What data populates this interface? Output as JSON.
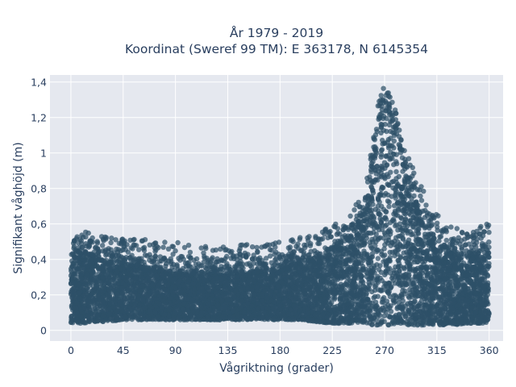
{
  "chart_data": {
    "type": "scatter",
    "title_line1": "År 1979 - 2019",
    "title_line2": "Koordinat (Sweref 99 TM): E 363178, N 6145354",
    "xlabel": "Vågriktning (grader)",
    "ylabel": "Signifikant våghöjd (m)",
    "xlim": [
      -18,
      372
    ],
    "ylim": [
      -0.06,
      1.44
    ],
    "x_ticks": [
      0,
      45,
      90,
      135,
      180,
      225,
      270,
      315,
      360
    ],
    "x_tick_labels": [
      "0",
      "45",
      "90",
      "135",
      "180",
      "225",
      "270",
      "315",
      "360"
    ],
    "y_ticks": [
      0,
      0.2,
      0.4,
      0.6,
      0.8,
      1.0,
      1.2,
      1.4
    ],
    "y_tick_labels": [
      "0",
      "0,2",
      "0,4",
      "0,6",
      "0,8",
      "1",
      "1,2",
      "1,4"
    ],
    "grid": true,
    "colors": {
      "marker": "#2e5168",
      "plot_bg": "#e5e8ef",
      "grid": "#ffffff"
    },
    "envelope": {
      "x": [
        0,
        10,
        20,
        30,
        45,
        60,
        75,
        90,
        105,
        120,
        135,
        150,
        165,
        180,
        195,
        210,
        225,
        240,
        250,
        255,
        260,
        265,
        270,
        275,
        280,
        285,
        290,
        295,
        300,
        305,
        310,
        315,
        320,
        330,
        340,
        350,
        355,
        360
      ],
      "y_min": [
        0.04,
        0.04,
        0.05,
        0.05,
        0.06,
        0.06,
        0.06,
        0.06,
        0.06,
        0.06,
        0.06,
        0.06,
        0.06,
        0.06,
        0.06,
        0.05,
        0.04,
        0.04,
        0.04,
        0.04,
        0.03,
        0.03,
        0.03,
        0.03,
        0.03,
        0.03,
        0.03,
        0.03,
        0.03,
        0.03,
        0.03,
        0.03,
        0.03,
        0.03,
        0.04,
        0.04,
        0.04,
        0.05
      ],
      "y_max": [
        0.56,
        0.56,
        0.55,
        0.53,
        0.52,
        0.52,
        0.5,
        0.5,
        0.48,
        0.47,
        0.47,
        0.49,
        0.48,
        0.5,
        0.52,
        0.56,
        0.6,
        0.66,
        0.78,
        0.92,
        1.1,
        1.3,
        1.38,
        1.34,
        1.24,
        1.1,
        1.0,
        0.92,
        0.86,
        0.78,
        0.7,
        0.66,
        0.62,
        0.58,
        0.56,
        0.58,
        0.6,
        0.6
      ],
      "dense_max": [
        0.44,
        0.44,
        0.42,
        0.4,
        0.38,
        0.36,
        0.34,
        0.32,
        0.32,
        0.32,
        0.32,
        0.32,
        0.33,
        0.35,
        0.38,
        0.42,
        0.46,
        0.52,
        0.62,
        0.78,
        0.98,
        1.18,
        1.26,
        1.22,
        1.12,
        0.96,
        0.84,
        0.74,
        0.66,
        0.58,
        0.52,
        0.48,
        0.46,
        0.44,
        0.42,
        0.44,
        0.46,
        0.44
      ]
    }
  }
}
